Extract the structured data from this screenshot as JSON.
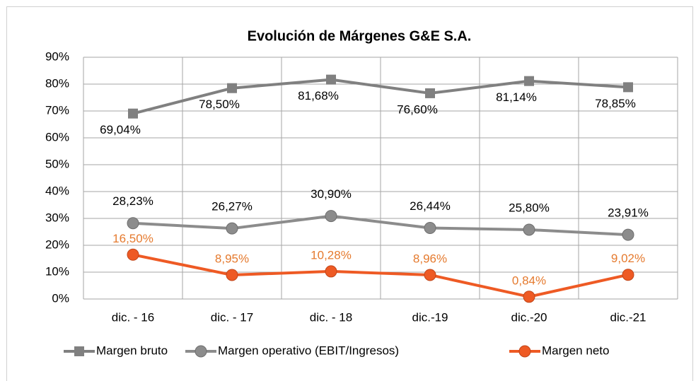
{
  "chart_data": {
    "type": "line",
    "title": "Evolución de Márgenes G&E S.A.",
    "categories": [
      "dic. - 16",
      "dic. - 17",
      "dic. - 18",
      "dic.-19",
      "dic.-20",
      "dic.-21"
    ],
    "series": [
      {
        "name": "Margen bruto",
        "color": "#808080",
        "marker": "square",
        "label_color": "#000000",
        "values": [
          69.04,
          78.5,
          81.68,
          76.6,
          81.14,
          78.85
        ],
        "value_labels": [
          "69,04%",
          "78,50%",
          "81,68%",
          "76,60%",
          "81,14%",
          "78,85%"
        ]
      },
      {
        "name": "Margen operativo  (EBIT/Ingresos)",
        "color": "#8c8c8c",
        "marker": "circle",
        "label_color": "#000000",
        "values": [
          28.23,
          26.27,
          30.9,
          26.44,
          25.8,
          23.91
        ],
        "value_labels": [
          "28,23%",
          "26,27%",
          "30,90%",
          "26,44%",
          "25,80%",
          "23,91%"
        ]
      },
      {
        "name": "Margen neto",
        "color": "#ee5a24",
        "marker": "circle",
        "label_color": "#e57a2e",
        "values": [
          16.5,
          8.95,
          10.28,
          8.96,
          0.84,
          9.02
        ],
        "value_labels": [
          "16,50%",
          "8,95%",
          "10,28%",
          "8,96%",
          "0,84%",
          "9,02%"
        ]
      }
    ],
    "ylim": [
      0,
      90
    ],
    "yticks": [
      {
        "value": 0,
        "label": "0%"
      },
      {
        "value": 10,
        "label": "10%"
      },
      {
        "value": 20,
        "label": "20%"
      },
      {
        "value": 30,
        "label": "30%"
      },
      {
        "value": 40,
        "label": "40%"
      },
      {
        "value": 50,
        "label": "50%"
      },
      {
        "value": 60,
        "label": "60%"
      },
      {
        "value": 70,
        "label": "70%"
      },
      {
        "value": 80,
        "label": "80%"
      },
      {
        "value": 90,
        "label": "90%"
      }
    ],
    "grid": true,
    "legend": "bottom"
  }
}
